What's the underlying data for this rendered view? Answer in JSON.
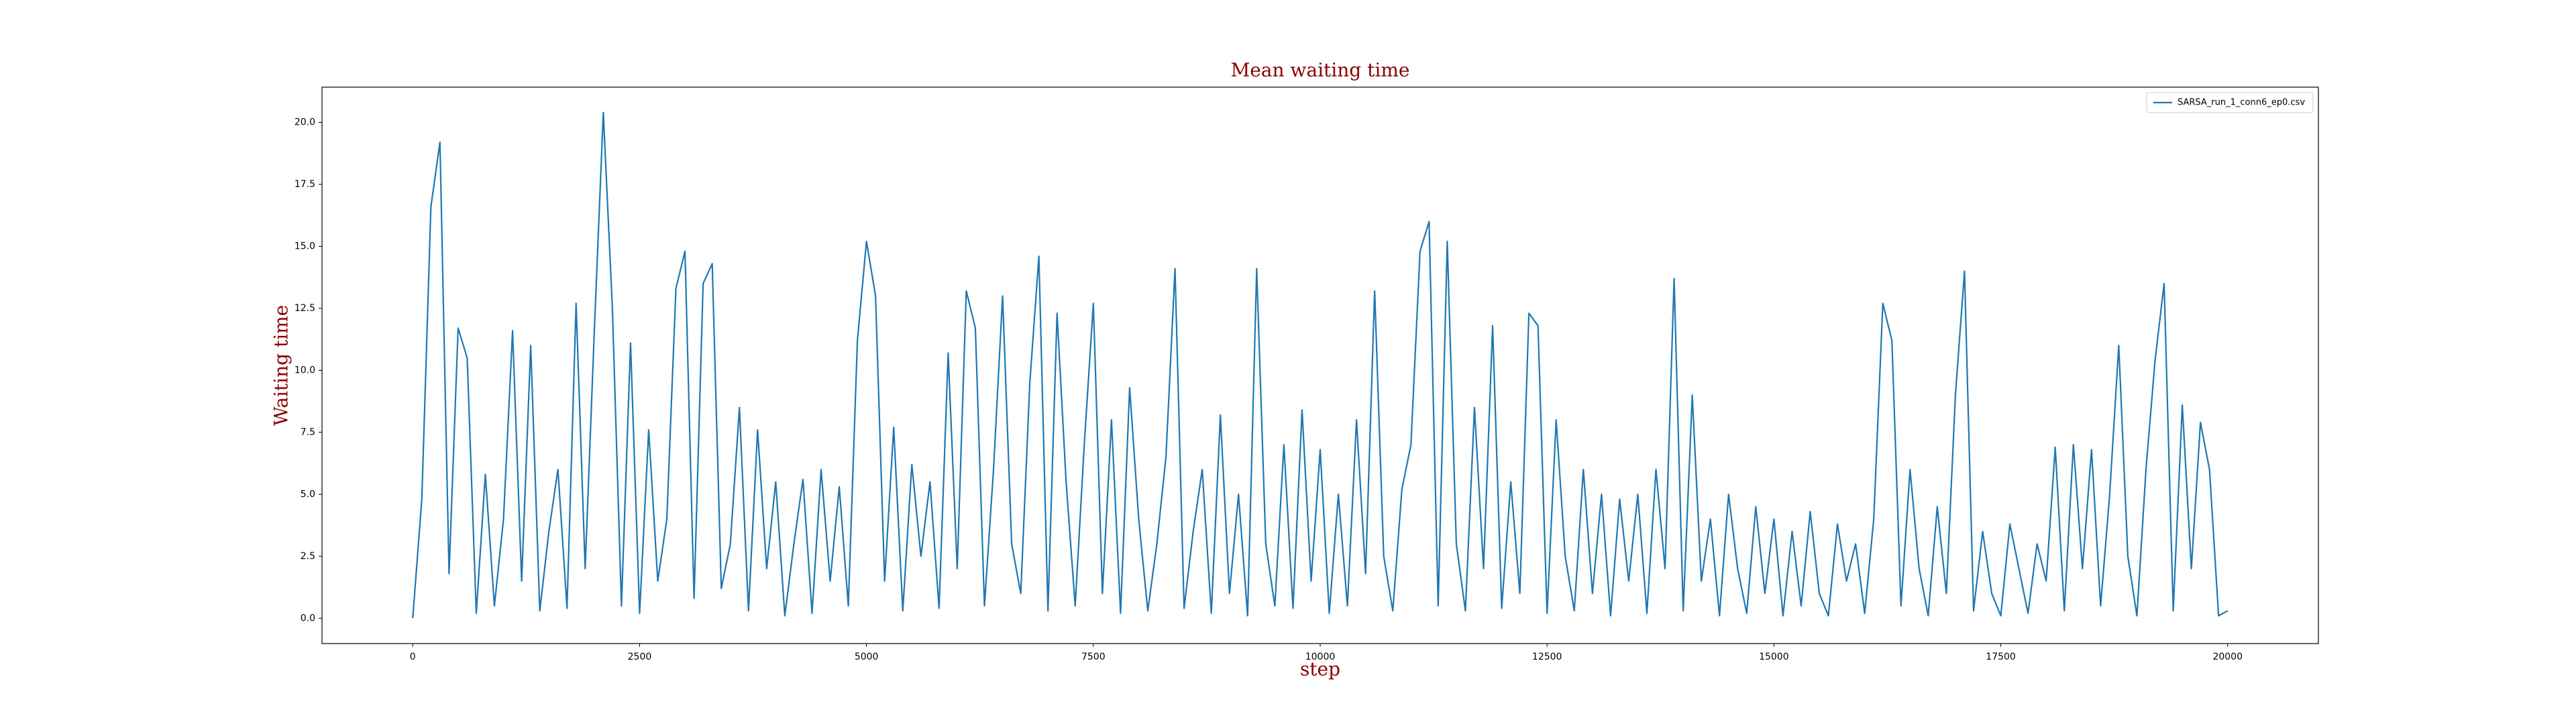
{
  "chart_data": {
    "type": "line",
    "title": "Mean waiting time",
    "xlabel": "step",
    "ylabel": "Waiting time",
    "x": [
      0,
      100,
      200,
      300,
      400,
      500,
      600,
      700,
      800,
      900,
      1000,
      1100,
      1200,
      1300,
      1400,
      1500,
      1600,
      1700,
      1800,
      1900,
      2000,
      2100,
      2200,
      2300,
      2400,
      2500,
      2600,
      2700,
      2800,
      2900,
      3000,
      3100,
      3200,
      3300,
      3400,
      3500,
      3600,
      3700,
      3800,
      3900,
      4000,
      4100,
      4200,
      4300,
      4400,
      4500,
      4600,
      4700,
      4800,
      4900,
      5000,
      5100,
      5200,
      5300,
      5400,
      5500,
      5600,
      5700,
      5800,
      5900,
      6000,
      6100,
      6200,
      6300,
      6400,
      6500,
      6600,
      6700,
      6800,
      6900,
      7000,
      7100,
      7200,
      7300,
      7400,
      7500,
      7600,
      7700,
      7800,
      7900,
      8000,
      8100,
      8200,
      8300,
      8400,
      8500,
      8600,
      8700,
      8800,
      8900,
      9000,
      9100,
      9200,
      9300,
      9400,
      9500,
      9600,
      9700,
      9800,
      9900,
      10000,
      10100,
      10200,
      10300,
      10400,
      10500,
      10600,
      10700,
      10800,
      10900,
      11000,
      11100,
      11200,
      11300,
      11400,
      11500,
      11600,
      11700,
      11800,
      11900,
      12000,
      12100,
      12200,
      12300,
      12400,
      12500,
      12600,
      12700,
      12800,
      12900,
      13000,
      13100,
      13200,
      13300,
      13400,
      13500,
      13600,
      13700,
      13800,
      13900,
      14000,
      14100,
      14200,
      14300,
      14400,
      14500,
      14600,
      14700,
      14800,
      14900,
      15000,
      15100,
      15200,
      15300,
      15400,
      15500,
      15600,
      15700,
      15800,
      15900,
      16000,
      16100,
      16200,
      16300,
      16400,
      16500,
      16600,
      16700,
      16800,
      16900,
      17000,
      17100,
      17200,
      17300,
      17400,
      17500,
      17600,
      17700,
      17800,
      17900,
      18000,
      18100,
      18200,
      18300,
      18400,
      18500,
      18600,
      18700,
      18800,
      18900,
      19000,
      19100,
      19200,
      19300,
      19400,
      19500,
      19600,
      19700,
      19800,
      19900,
      20000
    ],
    "series": [
      {
        "name": "SARSA_run_1_conn6_ep0.csv",
        "color": "#1f77b4",
        "values": [
          0,
          4.8,
          16.6,
          19.2,
          1.8,
          11.7,
          10.5,
          0.2,
          5.8,
          0.5,
          4.0,
          11.6,
          1.5,
          11.0,
          0.3,
          3.5,
          6.0,
          0.4,
          12.7,
          2.0,
          11.5,
          20.4,
          12.5,
          0.5,
          11.1,
          0.2,
          7.6,
          1.5,
          4.0,
          13.3,
          14.8,
          0.8,
          13.5,
          14.3,
          1.2,
          3.0,
          8.5,
          0.3,
          7.6,
          2.0,
          5.5,
          0.1,
          3.0,
          5.6,
          0.2,
          6.0,
          1.5,
          5.3,
          0.5,
          11.2,
          15.2,
          13.0,
          1.5,
          7.7,
          0.3,
          6.2,
          2.5,
          5.5,
          0.4,
          10.7,
          2.0,
          13.2,
          11.7,
          0.5,
          6.0,
          13.0,
          3.0,
          1.0,
          9.5,
          14.6,
          0.3,
          12.3,
          5.5,
          0.5,
          7.0,
          12.7,
          1.0,
          8.0,
          0.2,
          9.3,
          4.0,
          0.3,
          3.0,
          6.5,
          14.1,
          0.4,
          3.5,
          6.0,
          0.2,
          8.2,
          1.0,
          5.0,
          0.1,
          14.1,
          3.0,
          0.5,
          7.0,
          0.4,
          8.4,
          1.5,
          6.8,
          0.2,
          5.0,
          0.5,
          8.0,
          1.8,
          13.2,
          2.5,
          0.3,
          5.2,
          7.0,
          14.8,
          16.0,
          0.5,
          15.2,
          3.0,
          0.3,
          8.5,
          2.0,
          11.8,
          0.4,
          5.5,
          1.0,
          12.3,
          11.8,
          0.2,
          8.0,
          2.5,
          0.3,
          6.0,
          1.0,
          5.0,
          0.1,
          4.8,
          1.5,
          5.0,
          0.2,
          6.0,
          2.0,
          13.7,
          0.3,
          9.0,
          1.5,
          4.0,
          0.1,
          5.0,
          2.0,
          0.2,
          4.5,
          1.0,
          4.0,
          0.1,
          3.5,
          0.5,
          4.3,
          1.0,
          0.1,
          3.8,
          1.5,
          3.0,
          0.2,
          4.0,
          12.7,
          11.2,
          0.5,
          6.0,
          2.0,
          0.1,
          4.5,
          1.0,
          9.0,
          14.0,
          0.3,
          3.5,
          1.0,
          0.1,
          3.8,
          2.0,
          0.2,
          3.0,
          1.5,
          6.9,
          0.3,
          7.0,
          2.0,
          6.8,
          0.5,
          5.0,
          11.0,
          2.5,
          0.1,
          6.0,
          10.4,
          13.5,
          0.3,
          8.6,
          2.0,
          7.9,
          6.0,
          0.1,
          0.3
        ]
      }
    ],
    "xlim": [
      -1000,
      21000
    ],
    "xticks": [
      0,
      2500,
      5000,
      7500,
      10000,
      12500,
      15000,
      17500,
      20000
    ],
    "ylim": [
      -1.02,
      21.42
    ],
    "yticks": [
      {
        "value": 0,
        "label": "0.0"
      },
      2.5,
      {
        "value": 5,
        "label": "5.0"
      },
      7.5,
      {
        "value": 10,
        "label": "10.0"
      },
      12.5,
      {
        "value": 15,
        "label": "15.0"
      },
      17.5,
      {
        "value": 20,
        "label": "20.0"
      }
    ],
    "legend": "upper right"
  }
}
